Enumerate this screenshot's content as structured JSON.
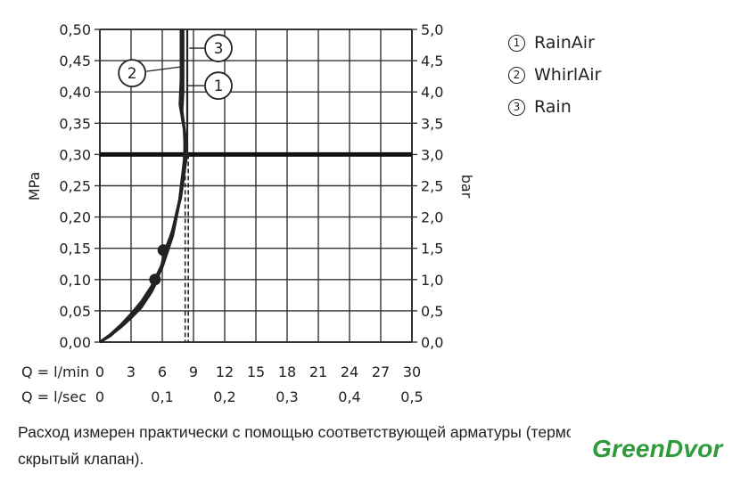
{
  "chart_data": {
    "type": "line",
    "ylabel_left": "MPa",
    "ylabel_right": "bar",
    "x_primary_label": "Q = l/min",
    "x_secondary_label": "Q = l/sec",
    "x_ticks": [
      "0",
      "3",
      "6",
      "9",
      "12",
      "15",
      "18",
      "21",
      "24",
      "27",
      "30"
    ],
    "x_secondary_ticks": [
      "0",
      "0,1",
      "0,2",
      "0,3",
      "0,4",
      "0,5"
    ],
    "y_ticks_left": [
      "0,00",
      "0,05",
      "0,10",
      "0,15",
      "0,20",
      "0,25",
      "0,30",
      "0,35",
      "0,40",
      "0,45",
      "0,50"
    ],
    "y_ticks_right": [
      "0,0",
      "0,5",
      "1,0",
      "1,5",
      "2,0",
      "2,5",
      "3,0",
      "3,5",
      "4,0",
      "4,5",
      "5,0"
    ],
    "xlim": [
      0,
      30
    ],
    "ylim": [
      0,
      0.5
    ],
    "grid": true,
    "reference_line_y": 0.3,
    "series": [
      {
        "name": "RainAir",
        "number": "1",
        "points": [
          [
            0,
            0
          ],
          [
            1,
            0.01
          ],
          [
            2,
            0.025
          ],
          [
            3,
            0.04
          ],
          [
            4,
            0.06
          ],
          [
            5,
            0.085
          ],
          [
            6,
            0.12
          ],
          [
            7,
            0.17
          ],
          [
            7.6,
            0.22
          ],
          [
            8.1,
            0.29
          ],
          [
            8.2,
            0.33
          ],
          [
            7.9,
            0.37
          ],
          [
            8.0,
            0.4
          ],
          [
            8.0,
            0.5
          ]
        ]
      },
      {
        "name": "WhirlAir",
        "number": "2",
        "points": [
          [
            0,
            0
          ],
          [
            1,
            0.012
          ],
          [
            2,
            0.027
          ],
          [
            3,
            0.045
          ],
          [
            4,
            0.065
          ],
          [
            5,
            0.09
          ],
          [
            6,
            0.125
          ],
          [
            7,
            0.18
          ],
          [
            7.7,
            0.23
          ],
          [
            8.2,
            0.3
          ],
          [
            8.1,
            0.34
          ],
          [
            7.7,
            0.38
          ],
          [
            7.8,
            0.42
          ],
          [
            7.8,
            0.5
          ]
        ]
      },
      {
        "name": "Rain",
        "number": "3",
        "points": [
          [
            0,
            0
          ],
          [
            1,
            0.01
          ],
          [
            2,
            0.023
          ],
          [
            3,
            0.038
          ],
          [
            4,
            0.055
          ],
          [
            5,
            0.08
          ],
          [
            5.6,
            0.1
          ],
          [
            6.2,
            0.145
          ],
          [
            7,
            0.18
          ],
          [
            7.8,
            0.23
          ],
          [
            8.4,
            0.3
          ],
          [
            8.4,
            0.4
          ],
          [
            8.4,
            0.5
          ]
        ]
      }
    ],
    "markers": [
      [
        5.3,
        0.1
      ],
      [
        6.1,
        0.147
      ]
    ],
    "annotations": [
      {
        "label": "1",
        "x": 11.4,
        "y": 0.41
      },
      {
        "label": "2",
        "x": 3.1,
        "y": 0.43
      },
      {
        "label": "3",
        "x": 11.4,
        "y": 0.47
      }
    ],
    "dashed_lines_x": [
      8.2,
      8.5
    ]
  },
  "legend": [
    {
      "symbol": "1",
      "label": "RainAir"
    },
    {
      "symbol": "2",
      "label": "WhirlAir"
    },
    {
      "symbol": "3",
      "label": "Rain"
    }
  ],
  "note": "Расход измерен практически с помощью соответствующей арматуры (термостат/смеситель/скрытый клапан).",
  "watermark": "GreenDvor",
  "colors": {
    "line": "#222222",
    "grid": "#333333",
    "watermark": "#2e9a3a"
  }
}
